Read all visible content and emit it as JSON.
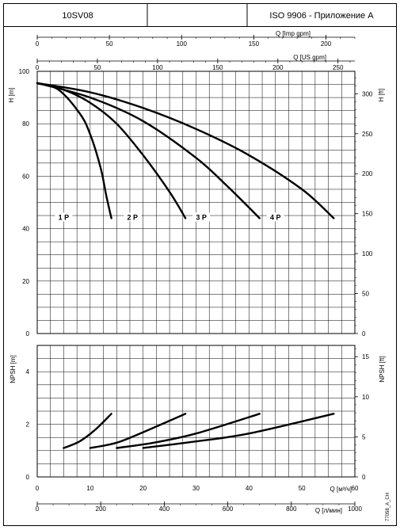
{
  "header": {
    "model": "10SV08",
    "middle": "",
    "standard": "ISO 9906 - Приложение A"
  },
  "chart_data": [
    {
      "type": "line",
      "title": "",
      "top_axes": [
        {
          "label": "Q [Imp gpm]",
          "ticks": [
            "0",
            "50",
            "100",
            "150",
            "200"
          ],
          "range": [
            0,
            220
          ]
        },
        {
          "label": "Q [US gpm]",
          "ticks": [
            "0",
            "50",
            "100",
            "150",
            "200",
            "250"
          ],
          "range": [
            0,
            264
          ]
        }
      ],
      "xlabel": "Q [м³/ч]",
      "xlim": [
        0,
        60
      ],
      "ylabel": "H [m]",
      "ylim": [
        0,
        100
      ],
      "y_ticks": [
        "0",
        "20",
        "40",
        "60",
        "80",
        "100"
      ],
      "y2label": "H [ft]",
      "y2_ticks": [
        "0",
        "50",
        "100",
        "150",
        "200",
        "250",
        "300"
      ],
      "grid": true,
      "series": [
        {
          "name": "1 P",
          "x": [
            0,
            4,
            8,
            10,
            12,
            13,
            14
          ],
          "y": [
            95.5,
            93,
            84,
            76,
            63,
            53,
            44
          ]
        },
        {
          "name": "2 P",
          "x": [
            0,
            5,
            10,
            15,
            20,
            25,
            28
          ],
          "y": [
            95.5,
            93,
            88,
            80,
            68,
            54,
            44
          ]
        },
        {
          "name": "3 P",
          "x": [
            0,
            10,
            20,
            30,
            36,
            42
          ],
          "y": [
            95.5,
            90,
            81,
            67,
            56,
            44
          ]
        },
        {
          "name": "4 P",
          "x": [
            0,
            10,
            20,
            30,
            40,
            50,
            56
          ],
          "y": [
            95.5,
            92,
            86,
            78,
            68,
            55,
            44
          ]
        }
      ]
    },
    {
      "type": "line",
      "title": "",
      "xlabel": "Q [м³/ч]",
      "x_ticks": [
        "0",
        "10",
        "20",
        "30",
        "40",
        "50",
        "60"
      ],
      "xlim": [
        0,
        60
      ],
      "x2label": "Q [л/мин]",
      "x2_ticks": [
        "0",
        "200",
        "400",
        "600",
        "800",
        "1000"
      ],
      "x2lim": [
        0,
        1000
      ],
      "ylabel": "NPSH [m]",
      "ylim": [
        0,
        5
      ],
      "y_ticks": [
        "0",
        "2",
        "4"
      ],
      "y2label": "NPSH [ft]",
      "y2_ticks": [
        "0",
        "5",
        "10",
        "15"
      ],
      "grid": true,
      "series": [
        {
          "name": "",
          "x": [
            5,
            8,
            11,
            14
          ],
          "y": [
            1.1,
            1.35,
            1.8,
            2.4
          ]
        },
        {
          "name": "",
          "x": [
            10,
            15,
            20,
            28
          ],
          "y": [
            1.1,
            1.3,
            1.7,
            2.4
          ]
        },
        {
          "name": "",
          "x": [
            15,
            22,
            30,
            42
          ],
          "y": [
            1.1,
            1.3,
            1.65,
            2.4
          ]
        },
        {
          "name": "",
          "x": [
            20,
            30,
            40,
            56
          ],
          "y": [
            1.1,
            1.35,
            1.65,
            2.4
          ]
        }
      ]
    }
  ],
  "doc_code": "77058_A_CH"
}
